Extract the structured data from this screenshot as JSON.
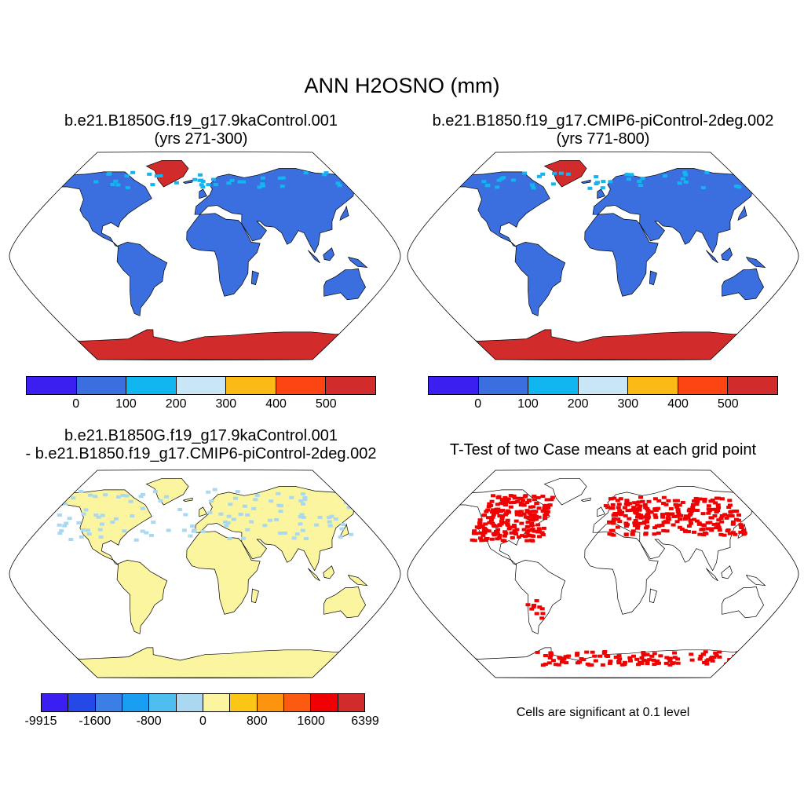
{
  "figure": {
    "title": "ANN H2OSNO (mm)",
    "panels": [
      {
        "id": "case1",
        "title_line1": "b.e21.B1850G.f19_g17.9kaControl.001",
        "title_line2": "(yrs 271-300)",
        "colorbar": {
          "colors": [
            "#3b1ef0",
            "#3b6fe0",
            "#11b6f0",
            "#c8e6f5",
            "#fbb915",
            "#fc4512",
            "#d12b2b"
          ],
          "tick_labels": [
            "0",
            "100",
            "200",
            "300",
            "400",
            "500"
          ]
        }
      },
      {
        "id": "case2",
        "title_line1": "b.e21.B1850.f19_g17.CMIP6-piControl-2deg.002",
        "title_line2": "(yrs 771-800)",
        "colorbar": {
          "colors": [
            "#3b1ef0",
            "#3b6fe0",
            "#11b6f0",
            "#c8e6f5",
            "#fbb915",
            "#fc4512",
            "#d12b2b"
          ],
          "tick_labels": [
            "0",
            "100",
            "200",
            "300",
            "400",
            "500"
          ]
        }
      },
      {
        "id": "difference",
        "title_line1": "b.e21.B1850G.f19_g17.9kaControl.001",
        "title_line2": "- b.e21.B1850.f19_g17.CMIP6-piControl-2deg.002",
        "colorbar": {
          "colors": [
            "#3b1ef0",
            "#2449e6",
            "#3b7ee6",
            "#1a9ef2",
            "#4ebdf0",
            "#a9d8f0",
            "#fbf5a0",
            "#fbc615",
            "#fc9410",
            "#fc5a10",
            "#f00000",
            "#d12b2b"
          ],
          "tick_labels": [
            "-9915",
            "-1600",
            "-800",
            "0",
            "800",
            "1600",
            "6399"
          ]
        }
      },
      {
        "id": "ttest",
        "title_line1": "T-Test of two Case means at each grid point",
        "note": "Cells are significant at 0.1 level"
      }
    ],
    "map_colors": {
      "land_main": "#3b6fe0",
      "polar_snow": "#d12b2b",
      "light_snow": "#11b6f0",
      "diff_land": "#fbf5a0",
      "diff_neg": "#a9d8f0",
      "significant": "#f00000"
    }
  }
}
